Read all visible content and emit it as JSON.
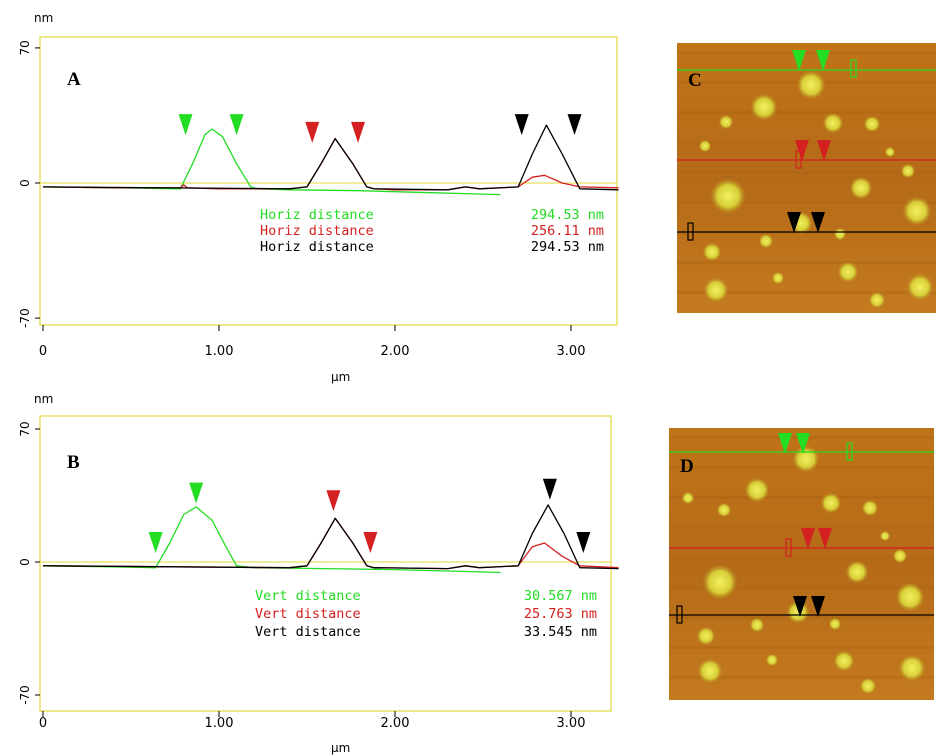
{
  "colors": {
    "green": "#22dd22",
    "red": "#d42020",
    "black": "#000000",
    "frame": "#e8e060",
    "afm_bg": "#b86e1c",
    "afm_particle": "#e4e040"
  },
  "chart_data": [
    {
      "type": "line",
      "panel_label": "A",
      "ylabel": "nm",
      "xlabel": "µm",
      "x_ticks": [
        "0",
        "1.00",
        "2.00",
        "3.00"
      ],
      "y_ticks": [
        "70",
        "0",
        "-70"
      ],
      "xlim": [
        0,
        3.27
      ],
      "ylim": [
        -73,
        72
      ],
      "series": [
        {
          "color": "green",
          "x": [
            0,
            0.4,
            0.78,
            0.85,
            0.92,
            0.96,
            1.02,
            1.1,
            1.18,
            1.22,
            1.4,
            1.8,
            2.2,
            2.4,
            2.6
          ],
          "y": [
            -2,
            -2.5,
            -3,
            10,
            25,
            28,
            24,
            10,
            -2,
            -3,
            -3.5,
            -4,
            -5,
            -5.5,
            -6
          ]
        },
        {
          "color": "red",
          "x": [
            0,
            0.4,
            0.78,
            0.8,
            0.82,
            1.0,
            1.4,
            1.5,
            1.58,
            1.66,
            1.76,
            1.84,
            1.88,
            2.0,
            2.3,
            2.4,
            2.48,
            2.7,
            2.78,
            2.85,
            2.95,
            3.05,
            3.27
          ],
          "y": [
            -2,
            -2.5,
            -2.5,
            -1,
            -2.5,
            -3,
            -3,
            -2,
            10,
            23,
            10,
            -2,
            -3,
            -3.5,
            -3.5,
            -2,
            -3,
            -2,
            3,
            4,
            0,
            -2,
            -2.5
          ]
        },
        {
          "color": "black",
          "x": [
            0,
            1.4,
            1.5,
            1.58,
            1.66,
            1.76,
            1.84,
            1.88,
            2.3,
            2.4,
            2.48,
            2.7,
            2.78,
            2.86,
            2.95,
            3.05,
            3.27
          ],
          "y": [
            -2,
            -3,
            -2,
            10,
            23,
            10,
            -2,
            -3,
            -3.5,
            -2,
            -3,
            -2,
            15,
            30,
            15,
            -3,
            -3.5
          ]
        }
      ],
      "markers": [
        {
          "color": "green",
          "x": 0.81,
          "y": 30
        },
        {
          "color": "green",
          "x": 1.1,
          "y": 30
        },
        {
          "color": "red",
          "x": 1.53,
          "y": 26
        },
        {
          "color": "red",
          "x": 1.79,
          "y": 26
        },
        {
          "color": "black",
          "x": 2.72,
          "y": 30
        },
        {
          "color": "black",
          "x": 3.02,
          "y": 30
        }
      ],
      "measurements": [
        {
          "color": "green",
          "label": "Horiz distance",
          "value": "294.53 nm"
        },
        {
          "color": "red",
          "label": "Horiz distance",
          "value": "256.11 nm"
        },
        {
          "color": "black",
          "label": "Horiz distance",
          "value": "294.53 nm"
        }
      ]
    },
    {
      "type": "line",
      "panel_label": "B",
      "ylabel": "nm",
      "xlabel": "µm",
      "x_ticks": [
        "0",
        "1.00",
        "2.00",
        "3.00"
      ],
      "y_ticks": [
        "70",
        "0",
        "-70"
      ],
      "xlim": [
        0,
        3.27
      ],
      "ylim": [
        -73,
        72
      ],
      "series": [
        {
          "color": "green",
          "x": [
            0,
            0.4,
            0.64,
            0.72,
            0.8,
            0.87,
            0.96,
            1.04,
            1.1,
            1.2,
            1.6,
            2.0,
            2.4,
            2.6
          ],
          "y": [
            -2,
            -2.5,
            -3,
            10,
            25,
            29,
            22,
            8,
            -2,
            -3,
            -3.5,
            -4,
            -5,
            -5.5
          ]
        },
        {
          "color": "red",
          "x": [
            0,
            1.4,
            1.5,
            1.58,
            1.66,
            1.76,
            1.84,
            1.88,
            2.3,
            2.4,
            2.48,
            2.7,
            2.78,
            2.85,
            2.95,
            3.05,
            3.27
          ],
          "y": [
            -2,
            -3,
            -2,
            10,
            23,
            10,
            -2,
            -3,
            -3.5,
            -2,
            -3,
            -2,
            8,
            10,
            3,
            -2,
            -3
          ]
        },
        {
          "color": "black",
          "x": [
            0,
            1.4,
            1.5,
            1.58,
            1.66,
            1.76,
            1.84,
            1.88,
            2.3,
            2.4,
            2.48,
            2.7,
            2.78,
            2.87,
            2.96,
            3.05,
            3.27
          ],
          "y": [
            -2,
            -3,
            -2,
            10,
            23,
            10,
            -2,
            -3,
            -3.5,
            -2,
            -3,
            -2,
            15,
            30,
            15,
            -3,
            -3.5
          ]
        }
      ],
      "markers": [
        {
          "color": "green",
          "x": 0.64,
          "y": 10
        },
        {
          "color": "green",
          "x": 0.87,
          "y": 36
        },
        {
          "color": "red",
          "x": 1.65,
          "y": 32
        },
        {
          "color": "red",
          "x": 1.86,
          "y": 10
        },
        {
          "color": "black",
          "x": 2.88,
          "y": 38
        },
        {
          "color": "black",
          "x": 3.07,
          "y": 10
        }
      ],
      "measurements": [
        {
          "color": "green",
          "label": "Vert distance",
          "value": "30.567 nm"
        },
        {
          "color": "red",
          "label": "Vert distance",
          "value": "25.763 nm"
        },
        {
          "color": "black",
          "label": "Vert distance",
          "value": "33.545 nm"
        }
      ]
    }
  ],
  "afm_images": [
    {
      "panel_label": "C"
    },
    {
      "panel_label": "D"
    }
  ]
}
